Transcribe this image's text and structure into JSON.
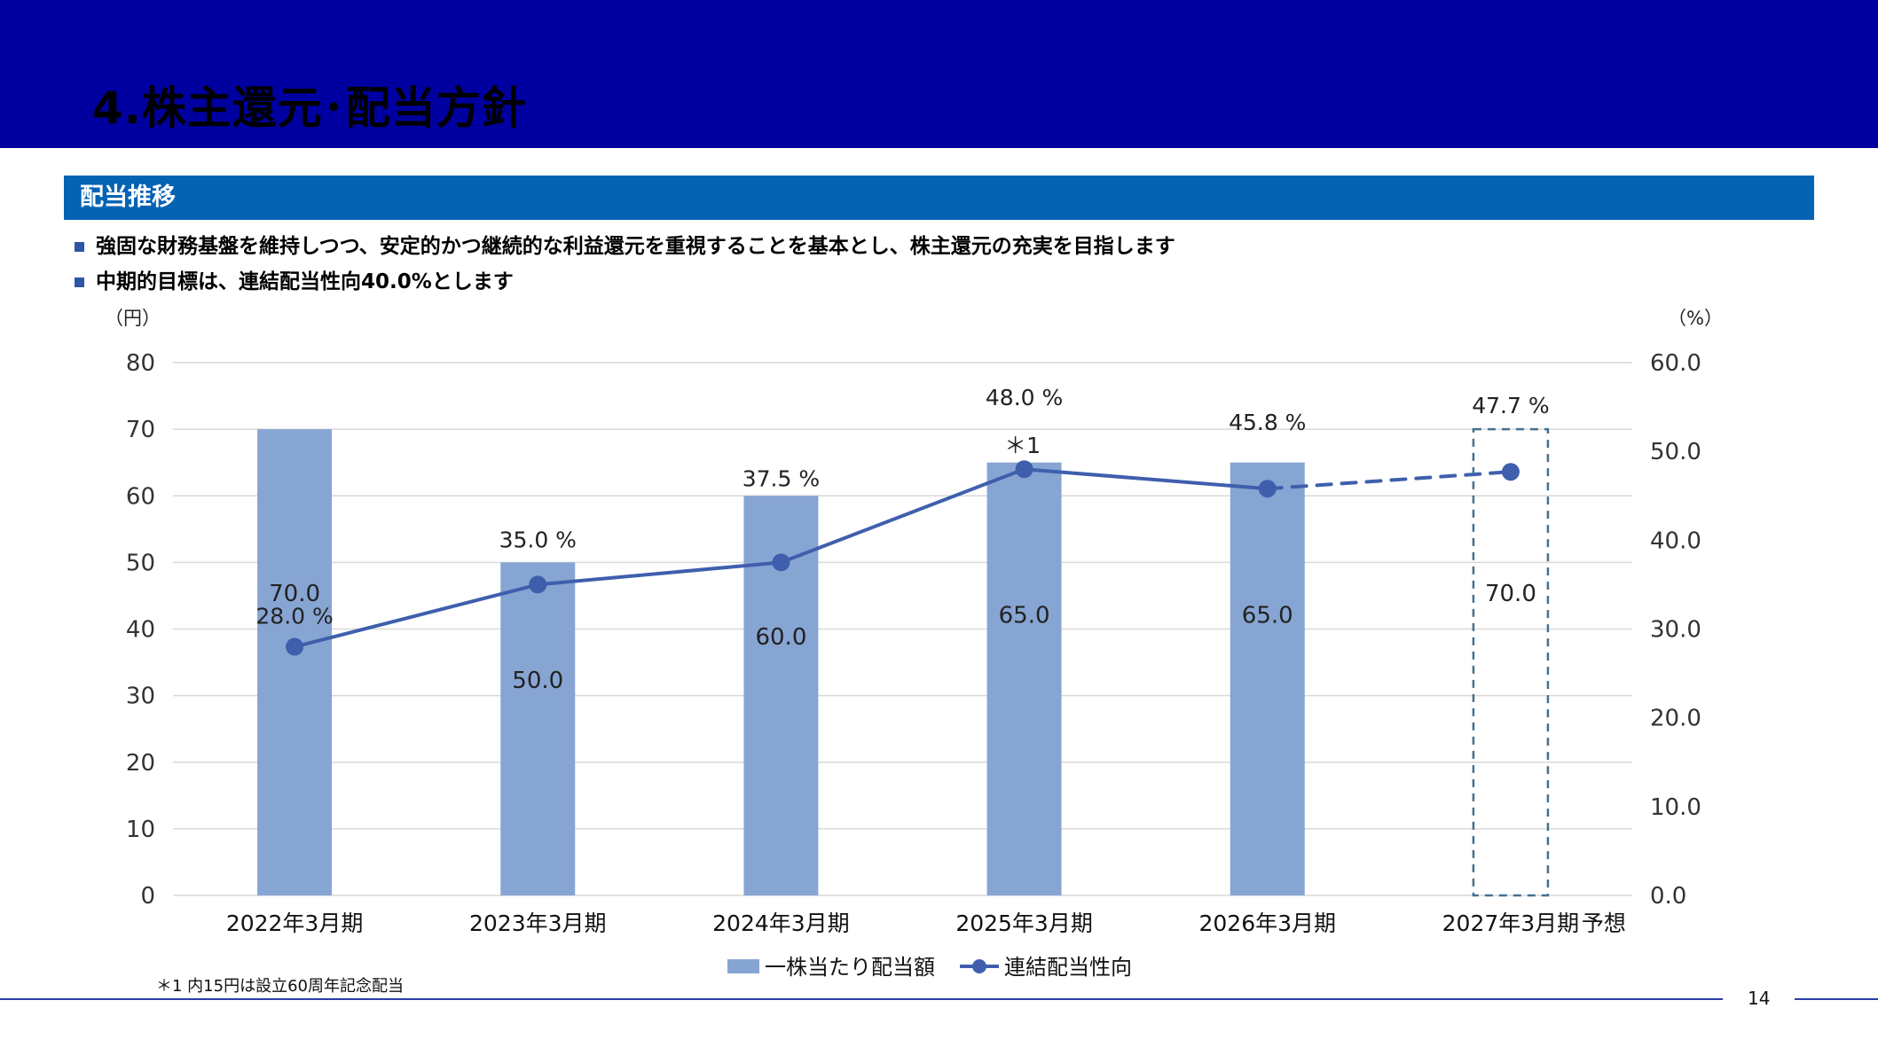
{
  "page": {
    "title": "4.株主還元･配当方針",
    "section_title": "配当推移",
    "bullets": [
      "強固な財務基盤を維持しつつ、安定的かつ継続的な利益還元を重視することを基本とし、株主還元の充実を目指します",
      "中期的目標は、連結配当性向40.0%とします"
    ],
    "footnote": "＊1 内15円は設立60周年記念配当",
    "page_number": "14"
  },
  "chart_data": {
    "type": "bar",
    "categories": [
      "2022年3月期",
      "2023年3月期",
      "2024年3月期",
      "2025年3月期",
      "2026年3月期",
      "2027年3月期"
    ],
    "forecast_label": "予想",
    "y_left_label": "（円）",
    "y_right_label": "（%）",
    "y_left_ticks": [
      "0",
      "10",
      "20",
      "30",
      "40",
      "50",
      "60",
      "70",
      "80"
    ],
    "y_right_ticks": [
      "0.0",
      "10.0",
      "20.0",
      "30.0",
      "40.0",
      "50.0",
      "60.0"
    ],
    "ylim_left": [
      0,
      80
    ],
    "ylim_right": [
      0,
      60
    ],
    "grid": true,
    "legend_position": "bottom",
    "series": [
      {
        "name": "一株当たり配当額",
        "type": "bar",
        "axis": "left",
        "values": [
          70.0,
          50.0,
          60.0,
          65.0,
          65.0,
          70.0
        ],
        "labels": [
          "70.0",
          "50.0",
          "60.0",
          "65.0",
          "65.0",
          "70.0"
        ],
        "color": "#87a5d3",
        "forecast_index": 5
      },
      {
        "name": "連結配当性向",
        "type": "line",
        "axis": "right",
        "values": [
          28.0,
          35.0,
          37.5,
          48.0,
          45.8,
          47.7
        ],
        "labels": [
          "28.0 %",
          "35.0 %",
          "37.5 %",
          "48.0 %",
          "45.8 %",
          "47.7 %"
        ],
        "color": "#3f5fad",
        "dashed_from_index": 4
      }
    ],
    "annotations": [
      {
        "category_index": 3,
        "text": "＊1"
      }
    ],
    "colors": {
      "bar": "#87a5d3",
      "line": "#3f5fad",
      "forecast_outline": "#46708f",
      "grid": "#d9d9d9"
    }
  }
}
